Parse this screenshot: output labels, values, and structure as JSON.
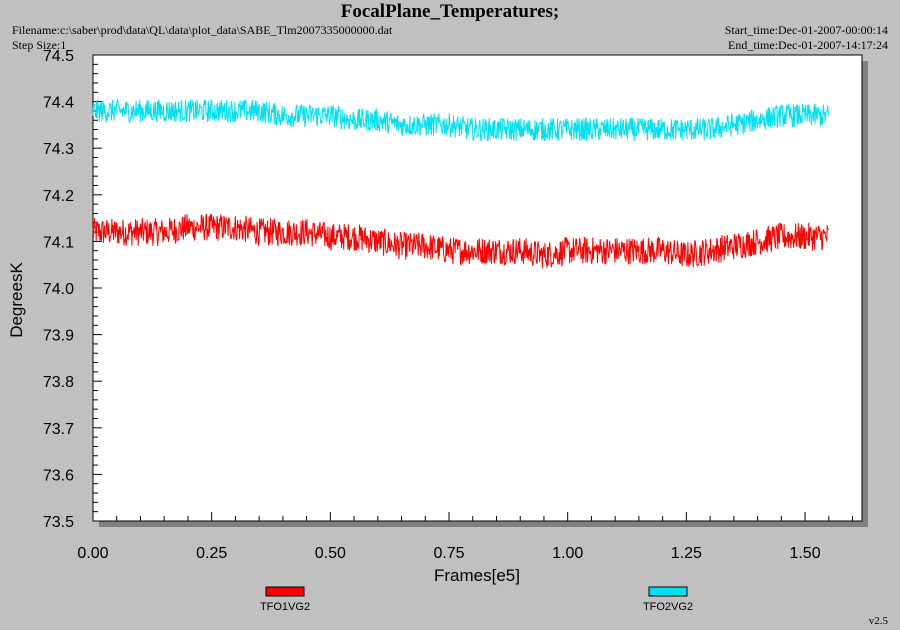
{
  "header": {
    "title": "FocalPlane_Temperatures;",
    "filename": "Filename:c:\\saber\\prod\\data\\QL\\data\\plot_data\\SABE_Tlm2007335000000.dat",
    "step_size": "Step Size:1",
    "start_time": "Start_time:Dec-01-2007-00:00:14",
    "end_time": "End_time:Dec-01-2007-14:17:24"
  },
  "version": "v2.5",
  "colors": {
    "background": "#c0c0c0",
    "plot_area": "#ffffff",
    "TFO1VG2": "#ff0000",
    "TFO2VG2": "#00e0f0"
  },
  "chart_data": {
    "type": "line",
    "title": "FocalPlane_Temperatures;",
    "xlabel": "Frames[e5]",
    "ylabel": "DegreesK",
    "xlim": [
      0,
      1.62
    ],
    "ylim": [
      73.5,
      74.5
    ],
    "xticks": [
      "0.00",
      "0.25",
      "0.50",
      "0.75",
      "1.00",
      "1.25",
      "1.50"
    ],
    "yticks": [
      "74.5",
      "74.4",
      "74.3",
      "74.2",
      "74.1",
      "74.0",
      "73.9",
      "73.8",
      "73.7",
      "73.6",
      "73.5"
    ],
    "grid": false,
    "legend_position": "bottom",
    "series": [
      {
        "name": "TFO1VG2",
        "color": "#ff0000",
        "x": [
          0.0,
          0.05,
          0.1,
          0.15,
          0.2,
          0.25,
          0.3,
          0.35,
          0.4,
          0.45,
          0.5,
          0.55,
          0.6,
          0.65,
          0.7,
          0.75,
          0.8,
          0.85,
          0.9,
          0.95,
          1.0,
          1.05,
          1.1,
          1.15,
          1.2,
          1.25,
          1.3,
          1.35,
          1.4,
          1.45,
          1.5,
          1.55
        ],
        "y": [
          74.12,
          74.12,
          74.12,
          74.12,
          74.13,
          74.13,
          74.13,
          74.12,
          74.12,
          74.12,
          74.11,
          74.11,
          74.1,
          74.09,
          74.09,
          74.08,
          74.08,
          74.08,
          74.08,
          74.07,
          74.08,
          74.08,
          74.08,
          74.08,
          74.08,
          74.07,
          74.08,
          74.09,
          74.1,
          74.11,
          74.11,
          74.11
        ],
        "noise": 0.03
      },
      {
        "name": "TFO2VG2",
        "color": "#00e0f0",
        "x": [
          0.0,
          0.05,
          0.1,
          0.15,
          0.2,
          0.25,
          0.3,
          0.35,
          0.4,
          0.45,
          0.5,
          0.55,
          0.6,
          0.65,
          0.7,
          0.75,
          0.8,
          0.85,
          0.9,
          0.95,
          1.0,
          1.05,
          1.1,
          1.15,
          1.2,
          1.25,
          1.3,
          1.35,
          1.4,
          1.45,
          1.5,
          1.55
        ],
        "y": [
          74.38,
          74.38,
          74.38,
          74.38,
          74.38,
          74.38,
          74.38,
          74.38,
          74.37,
          74.37,
          74.37,
          74.36,
          74.36,
          74.35,
          74.35,
          74.35,
          74.34,
          74.34,
          74.34,
          74.34,
          74.34,
          74.34,
          74.34,
          74.34,
          74.34,
          74.34,
          74.34,
          74.35,
          74.36,
          74.37,
          74.37,
          74.37
        ],
        "noise": 0.025
      }
    ]
  }
}
